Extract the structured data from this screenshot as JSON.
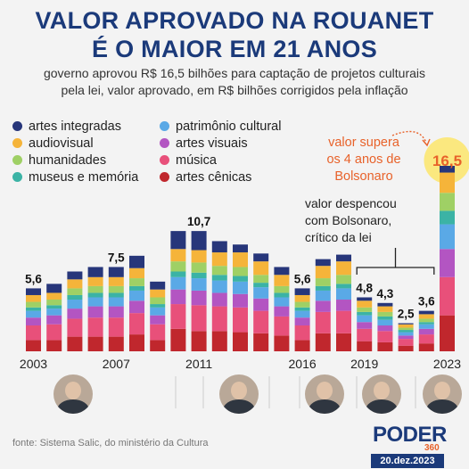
{
  "header": {
    "title_line1": "VALOR APROVADO NA ROUANET",
    "title_line2": "É O MAIOR EM 21 ANOS",
    "subtitle_line1": "governo aprovou R$ 16,5 bilhões para captação de projetos culturais",
    "subtitle_line2": "pela lei, valor aprovado, em R$ bilhões corrigidos pela inflação"
  },
  "annotations": {
    "supera_line1": "valor supera",
    "supera_line2": "os 4 anos de",
    "supera_line3": "Bolsonaro",
    "despencou_line1": "valor despencou",
    "despencou_line2": "com Bolsonaro,",
    "despencou_line3": "crítico da lei"
  },
  "footer": {
    "source": "fonte: Sistema Salic, do ministério da Cultura",
    "logo": "PODER",
    "logo_sub": "360",
    "date": "20.dez.2023"
  },
  "colors": {
    "highlight": "#e8622a",
    "title": "#1b3a7a"
  },
  "chart_data": {
    "type": "bar",
    "stacked": true,
    "title": "",
    "xlabel": "",
    "ylabel": "",
    "unit": "R$ bilhões",
    "x": [
      "2003",
      "2004",
      "2005",
      "2006",
      "2007",
      "2008",
      "2009",
      "2010",
      "2011",
      "2012",
      "2013",
      "2014",
      "2015",
      "2016",
      "2017",
      "2018",
      "2019",
      "2020",
      "2021",
      "2022",
      "2023"
    ],
    "x_tick_labels": [
      "2003",
      "2007",
      "2011",
      "2016",
      "2019",
      "2023"
    ],
    "totals": [
      5.6,
      6.0,
      7.1,
      7.5,
      7.5,
      8.5,
      6.2,
      10.7,
      10.7,
      9.8,
      9.5,
      8.7,
      7.5,
      5.6,
      8.2,
      8.6,
      4.8,
      4.3,
      2.5,
      3.6,
      16.5
    ],
    "total_labels": {
      "2003": "5,6",
      "2007": "7,5",
      "2011": "10,7",
      "2016": "5,6",
      "2019": "4,8",
      "2020": "4,3",
      "2021": "2,5",
      "2022": "3,6",
      "2023": "16,5"
    },
    "series": [
      {
        "name": "artes cênicas",
        "color": "#c0272d",
        "values": [
          1.0,
          1.0,
          1.3,
          1.3,
          1.3,
          1.5,
          1.0,
          2.0,
          1.8,
          1.8,
          1.7,
          1.6,
          1.4,
          1.0,
          1.6,
          1.6,
          0.9,
          0.8,
          0.5,
          0.7,
          3.2
        ]
      },
      {
        "name": "música",
        "color": "#e8507a",
        "values": [
          1.3,
          1.4,
          1.6,
          1.7,
          1.7,
          1.9,
          1.4,
          2.2,
          2.3,
          2.2,
          2.2,
          2.0,
          1.7,
          1.3,
          1.9,
          2.0,
          1.1,
          1.0,
          0.6,
          0.8,
          3.4
        ]
      },
      {
        "name": "artes visuais",
        "color": "#b355c2",
        "values": [
          0.7,
          0.8,
          0.9,
          1.0,
          1.0,
          1.1,
          0.8,
          1.3,
          1.3,
          1.2,
          1.2,
          1.1,
          0.9,
          0.7,
          1.0,
          1.0,
          0.6,
          0.5,
          0.3,
          0.5,
          2.5
        ]
      },
      {
        "name": "patrimônio cultural",
        "color": "#5aa9e6",
        "values": [
          0.6,
          0.6,
          0.8,
          0.8,
          0.8,
          0.9,
          0.7,
          1.1,
          1.1,
          1.1,
          1.1,
          1.0,
          0.8,
          0.6,
          0.9,
          1.0,
          0.6,
          0.5,
          0.3,
          0.4,
          2.2
        ]
      },
      {
        "name": "museus e memória",
        "color": "#3bb3a5",
        "values": [
          0.3,
          0.3,
          0.4,
          0.4,
          0.4,
          0.4,
          0.3,
          0.5,
          0.5,
          0.5,
          0.5,
          0.4,
          0.4,
          0.3,
          0.4,
          0.4,
          0.3,
          0.3,
          0.2,
          0.2,
          1.2
        ]
      },
      {
        "name": "humanidades",
        "color": "#9fd065",
        "values": [
          0.5,
          0.5,
          0.6,
          0.6,
          0.6,
          0.7,
          0.6,
          0.9,
          0.9,
          0.8,
          0.8,
          0.7,
          0.6,
          0.5,
          0.7,
          0.8,
          0.4,
          0.4,
          0.2,
          0.3,
          1.6
        ]
      },
      {
        "name": "audiovisual",
        "color": "#f5b43a",
        "values": [
          0.6,
          0.6,
          0.8,
          0.8,
          0.8,
          0.9,
          0.7,
          1.1,
          1.1,
          1.2,
          1.3,
          1.2,
          1.0,
          0.6,
          1.1,
          1.2,
          0.6,
          0.5,
          0.3,
          0.4,
          1.8
        ]
      },
      {
        "name": "artes integradas",
        "color": "#27367a",
        "values": [
          0.6,
          0.8,
          0.7,
          0.9,
          0.9,
          1.1,
          0.7,
          1.6,
          1.7,
          1.0,
          0.7,
          0.7,
          0.7,
          0.6,
          0.6,
          0.6,
          0.3,
          0.3,
          0.1,
          0.3,
          0.6
        ]
      }
    ],
    "legend_order": [
      "artes integradas",
      "patrimônio cultural",
      "audiovisual",
      "artes visuais",
      "humanidades",
      "música",
      "museus e memória",
      "artes cênicas"
    ],
    "ylim": [
      0,
      17
    ],
    "grid": false,
    "legend_position": "top-left"
  }
}
